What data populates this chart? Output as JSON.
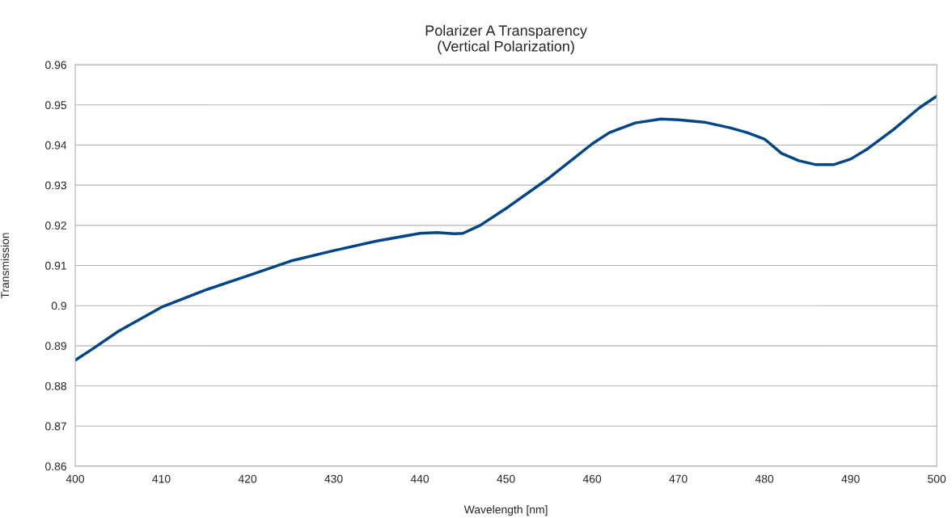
{
  "chart_data": {
    "type": "line",
    "title": "Polarizer A Transparency\n(Vertical Polarization)",
    "xlabel": "Wavelength [nm]",
    "ylabel": "Transmission",
    "series": [
      {
        "color": "#004586",
        "x": [
          400,
          402,
          405,
          410,
          415,
          420,
          425,
          430,
          435,
          440,
          442,
          444,
          445,
          447,
          450,
          455,
          458,
          460,
          462,
          465,
          468,
          470,
          473,
          476,
          478,
          480,
          482,
          484,
          486,
          488,
          490,
          492,
          495,
          498,
          500
        ],
        "values": [
          0.8864,
          0.8892,
          0.8936,
          0.8996,
          0.9038,
          0.9074,
          0.9111,
          0.9137,
          0.9161,
          0.918,
          0.9182,
          0.9179,
          0.918,
          0.92,
          0.9242,
          0.9318,
          0.9369,
          0.9403,
          0.9431,
          0.9455,
          0.9465,
          0.9463,
          0.9457,
          0.9443,
          0.9431,
          0.9415,
          0.9379,
          0.9361,
          0.9351,
          0.9351,
          0.9365,
          0.9391,
          0.9439,
          0.9493,
          0.9522
        ]
      }
    ],
    "xlim": [
      400,
      500
    ],
    "xticks": [
      400,
      410,
      420,
      430,
      440,
      450,
      460,
      470,
      480,
      490,
      500
    ],
    "ylim": [
      0.86,
      0.96
    ],
    "yticks": [
      0.86,
      0.87,
      0.88,
      0.89,
      {
        "value": 0.9,
        "label": "0.9"
      },
      0.91,
      0.92,
      0.93,
      0.94,
      0.95,
      0.96
    ],
    "grid": "y",
    "marker": "none",
    "line_style": "solid"
  }
}
